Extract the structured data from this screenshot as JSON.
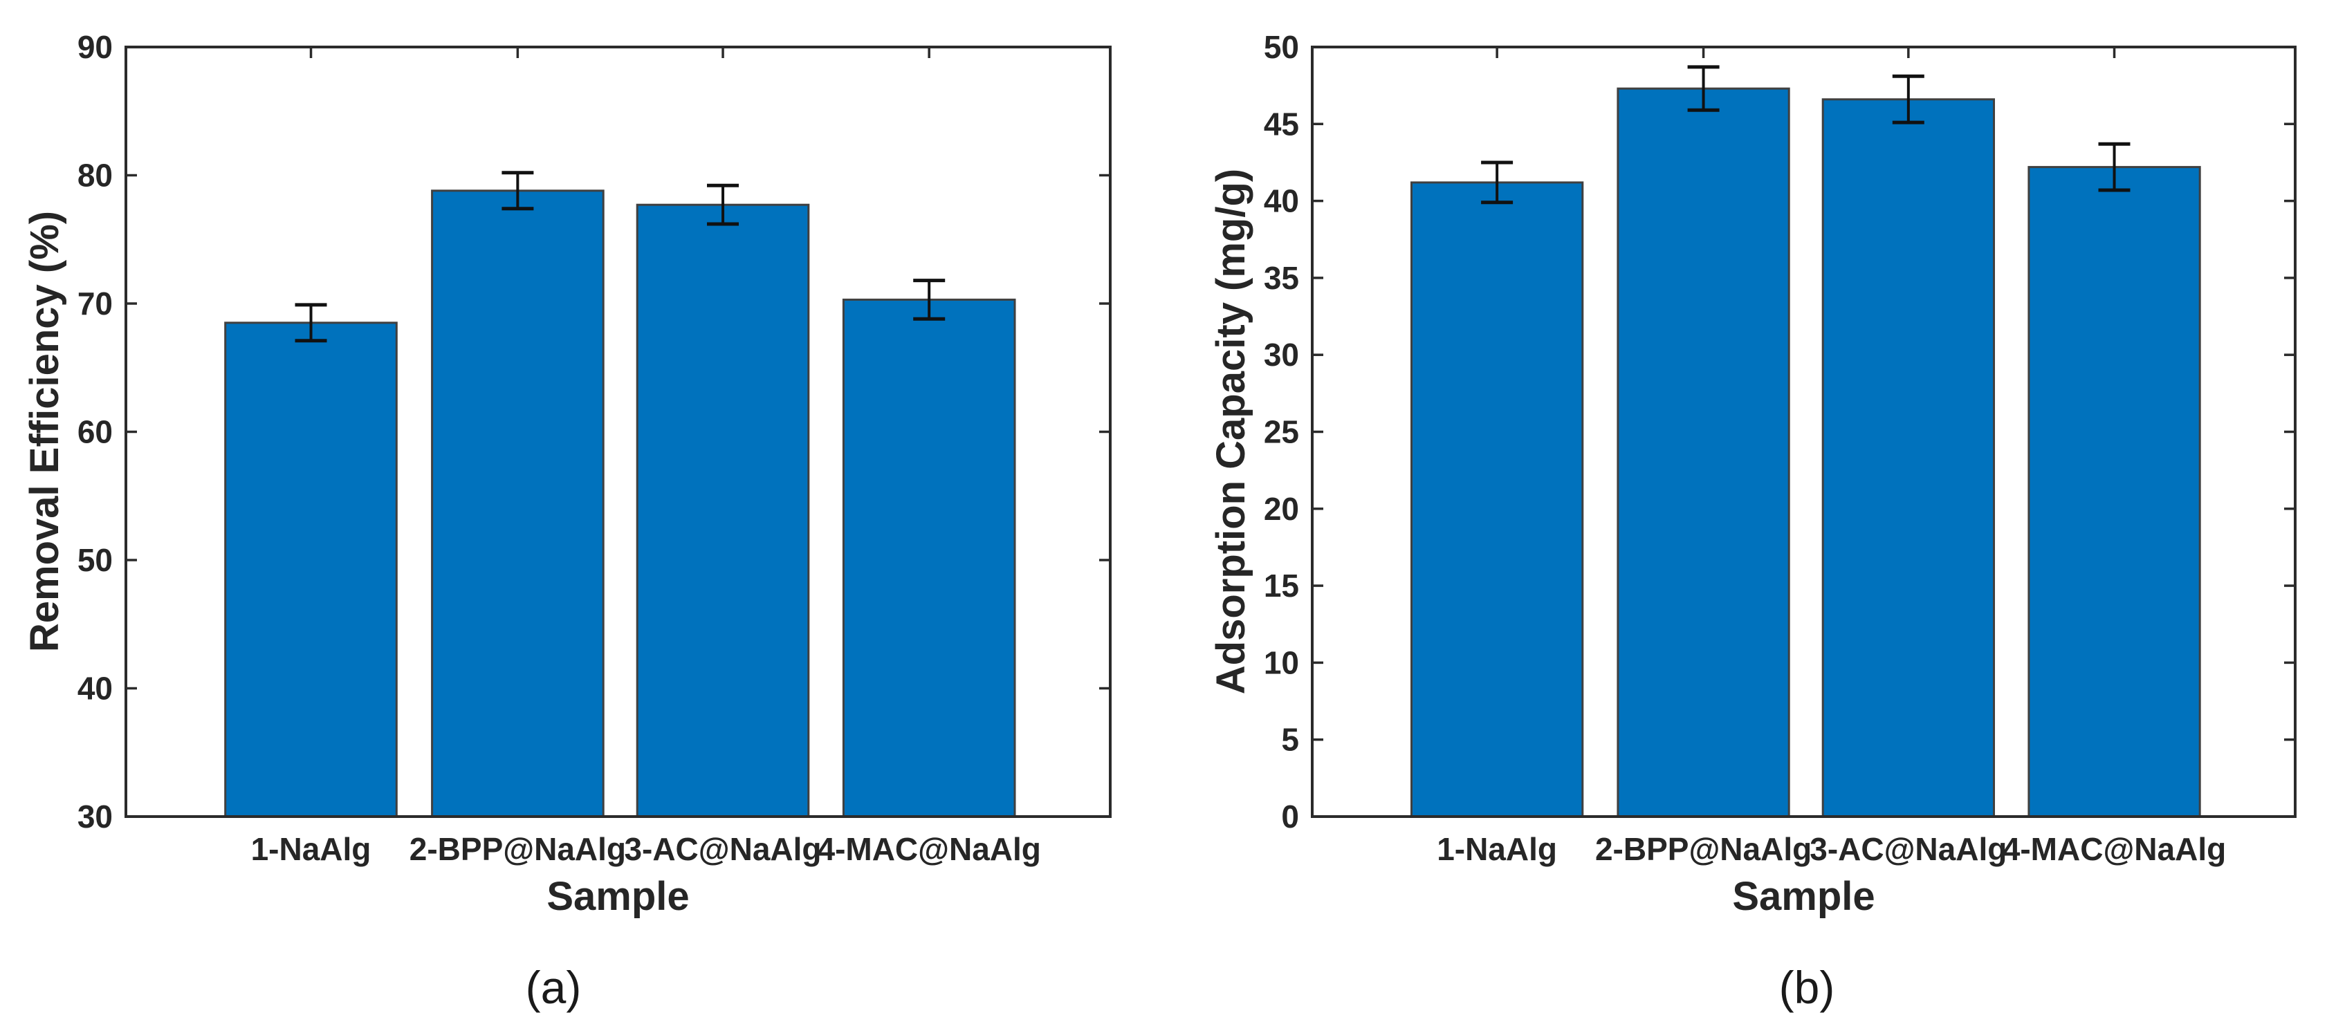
{
  "page": {
    "background": "#ffffff"
  },
  "chart_data": [
    {
      "type": "bar",
      "panel_label": "(a)",
      "title": "",
      "xlabel": "Sample",
      "ylabel": "Removal Efficiency (%)",
      "categories": [
        "1-NaAlg",
        "2-BPP@NaAlg",
        "3-AC@NaAlg",
        "4-MAC@NaAlg"
      ],
      "values": [
        68.5,
        78.8,
        77.7,
        70.3
      ],
      "error_bars": [
        1.4,
        1.4,
        1.5,
        1.5
      ],
      "ylim": [
        30,
        90
      ],
      "yticks": [
        30,
        40,
        50,
        60,
        70,
        80,
        90
      ],
      "grid": false,
      "legend": "none",
      "bar_color": "#0072BD",
      "bar_edge_color": "#404040",
      "error_bar_color": "#111111",
      "axis_color": "#2b2b2b",
      "text_color": "#262626"
    },
    {
      "type": "bar",
      "panel_label": "(b)",
      "title": "",
      "xlabel": "Sample",
      "ylabel": "Adsorption Capacity (mg/g)",
      "categories": [
        "1-NaAlg",
        "2-BPP@NaAlg",
        "3-AC@NaAlg",
        "4-MAC@NaAlg"
      ],
      "values": [
        41.2,
        47.3,
        46.6,
        42.2
      ],
      "error_bars": [
        1.3,
        1.4,
        1.5,
        1.5
      ],
      "ylim": [
        0,
        50
      ],
      "yticks": [
        0,
        5,
        10,
        15,
        20,
        25,
        30,
        35,
        40,
        45,
        50
      ],
      "grid": false,
      "legend": "none",
      "bar_color": "#0072BD",
      "bar_edge_color": "#404040",
      "error_bar_color": "#111111",
      "axis_color": "#2b2b2b",
      "text_color": "#262626"
    }
  ]
}
